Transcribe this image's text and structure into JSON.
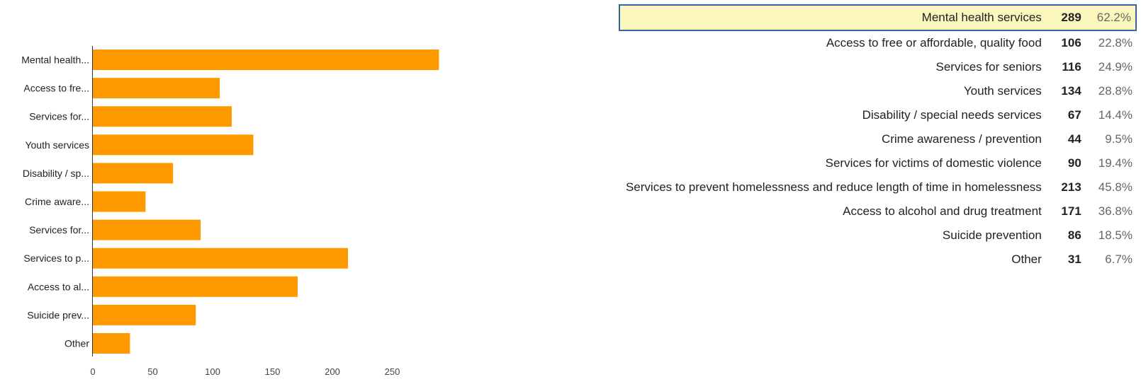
{
  "chart_data": {
    "type": "bar",
    "orientation": "horizontal",
    "categories": [
      "Mental health...",
      "Access to fre...",
      "Services for...",
      "Youth services",
      "Disability / sp...",
      "Crime aware...",
      "Services for...",
      "Services to p...",
      "Access to al...",
      "Suicide prev...",
      "Other"
    ],
    "values": [
      289,
      106,
      116,
      134,
      67,
      44,
      90,
      213,
      171,
      86,
      31
    ],
    "xticks": [
      0,
      50,
      100,
      150,
      200,
      250
    ],
    "xlim": [
      0,
      300
    ],
    "bar_color": "#ff9900",
    "grid": false,
    "legend": "none",
    "title": "",
    "xlabel": "",
    "ylabel": ""
  },
  "summary": {
    "highlight_color": "#fbf7bf",
    "highlight_border_color": "#33699a",
    "rows": [
      {
        "label": "Mental health services",
        "count": "289",
        "percent": "62.2%",
        "highlighted": true
      },
      {
        "label": "Access to free or affordable, quality food",
        "count": "106",
        "percent": "22.8%",
        "highlighted": false
      },
      {
        "label": "Services for seniors",
        "count": "116",
        "percent": "24.9%",
        "highlighted": false
      },
      {
        "label": "Youth services",
        "count": "134",
        "percent": "28.8%",
        "highlighted": false
      },
      {
        "label": "Disability / special needs services",
        "count": "67",
        "percent": "14.4%",
        "highlighted": false
      },
      {
        "label": "Crime awareness / prevention",
        "count": "44",
        "percent": "9.5%",
        "highlighted": false
      },
      {
        "label": "Services for victims of domestic violence",
        "count": "90",
        "percent": "19.4%",
        "highlighted": false
      },
      {
        "label": "Services to prevent homelessness and reduce length of time in homelessness",
        "count": "213",
        "percent": "45.8%",
        "highlighted": false
      },
      {
        "label": "Access to alcohol and drug treatment",
        "count": "171",
        "percent": "36.8%",
        "highlighted": false
      },
      {
        "label": "Suicide prevention",
        "count": "86",
        "percent": "18.5%",
        "highlighted": false
      },
      {
        "label": "Other",
        "count": "31",
        "percent": "6.7%",
        "highlighted": false
      }
    ]
  }
}
